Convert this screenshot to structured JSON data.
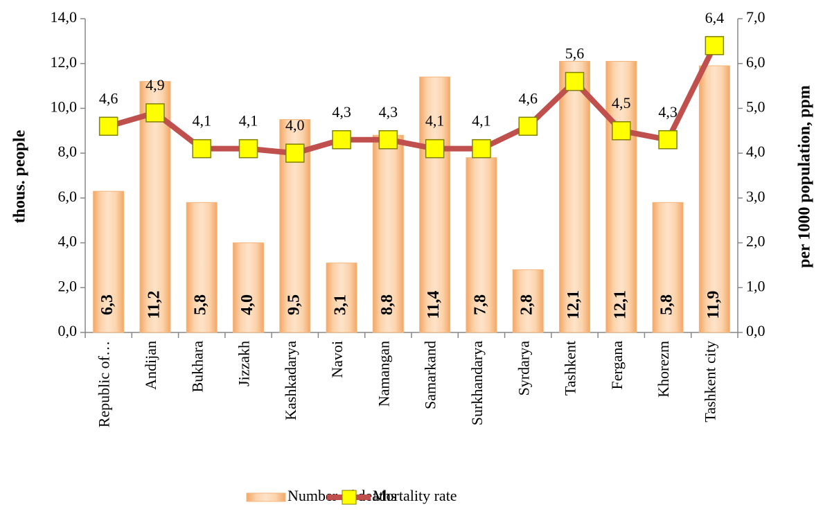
{
  "chart_data": {
    "type": "bar",
    "categories": [
      "Republic of…",
      "Andijan",
      "Bukhara",
      "Jizzakh",
      "Kashkadarya",
      "Navoi",
      "Namangan",
      "Samarkand",
      "Surkhandarya",
      "Syrdarya",
      "Tashkent",
      "Fergana",
      "Khorezm",
      "Tashkent city"
    ],
    "series": [
      {
        "name": "Number of deaths",
        "type": "bar",
        "color": "#f5b57c",
        "values": [
          6.3,
          11.2,
          5.8,
          4.0,
          9.5,
          3.1,
          8.8,
          11.4,
          7.8,
          2.8,
          12.1,
          12.1,
          5.8,
          11.9
        ],
        "value_labels": [
          "6,3",
          "11,2",
          "5,8",
          "4,0",
          "9,5",
          "3,1",
          "8,8",
          "11,4",
          "7,8",
          "2,8",
          "12,1",
          "12,1",
          "5,8",
          "11,9"
        ]
      },
      {
        "name": "Mortality rate",
        "type": "line",
        "axis": "y2",
        "color": "#c0504d",
        "marker_color": "#ffff00",
        "values": [
          4.6,
          4.9,
          4.1,
          4.1,
          4.0,
          4.3,
          4.3,
          4.1,
          4.1,
          4.6,
          5.6,
          4.5,
          4.3,
          6.4
        ],
        "value_labels": [
          "4,6",
          "4,9",
          "4,1",
          "4,1",
          "4,0",
          "4,3",
          "4,3",
          "4,1",
          "4,1",
          "4,6",
          "5,6",
          "4,5",
          "4,3",
          "6,4"
        ]
      }
    ],
    "y_label": "thous. people",
    "y2_label": "per 1000 population, ppm",
    "ylim": [
      0,
      14
    ],
    "yticks": [
      {
        "value": 0,
        "label": "0,0"
      },
      {
        "value": 2,
        "label": "2,0"
      },
      {
        "value": 4,
        "label": "4,0"
      },
      {
        "value": 6,
        "label": "6,0"
      },
      {
        "value": 8,
        "label": "8,0"
      },
      {
        "value": 10,
        "label": "10,0"
      },
      {
        "value": 12,
        "label": "12,0"
      },
      {
        "value": 14,
        "label": "14,0"
      }
    ],
    "y2lim": [
      0,
      7
    ],
    "y2ticks": [
      {
        "value": 0,
        "label": "0,0"
      },
      {
        "value": 1,
        "label": "1,0"
      },
      {
        "value": 2,
        "label": "2,0"
      },
      {
        "value": 3,
        "label": "3,0"
      },
      {
        "value": 4,
        "label": "4,0"
      },
      {
        "value": 5,
        "label": "5,0"
      },
      {
        "value": 6,
        "label": "6,0"
      },
      {
        "value": 7,
        "label": "7,0"
      }
    ],
    "legend": "bottom"
  }
}
